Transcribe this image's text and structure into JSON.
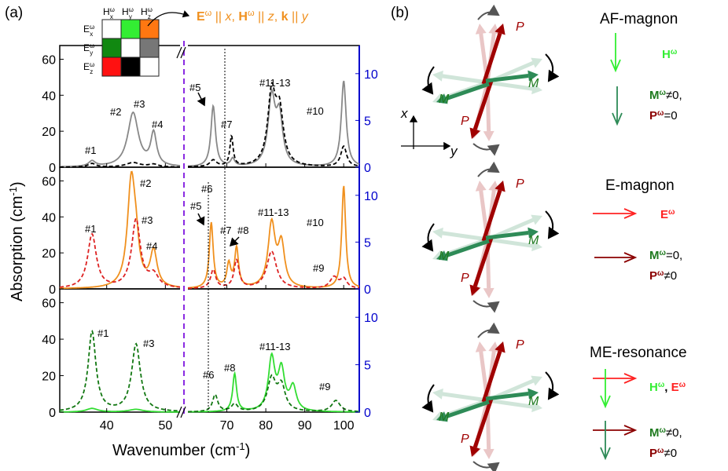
{
  "panel_labels": {
    "a": "(a)",
    "b": "(b)"
  },
  "matrix": {
    "col_headers": [
      "H",
      "H",
      "H"
    ],
    "col_subs": [
      "x",
      "y",
      "z"
    ],
    "row_headers": [
      "E",
      "E",
      "E"
    ],
    "row_subs": [
      "x",
      "y",
      "z"
    ],
    "sup": "ω",
    "cells": [
      [
        "#ffffff",
        "#33ee33",
        "#ff7711"
      ],
      [
        "#118811",
        "#ffffff",
        "#777777"
      ],
      [
        "#ff1111",
        "#000000",
        "#ffffff"
      ]
    ],
    "annotation": {
      "E": "E",
      "H": "H",
      "k": "k",
      "sup": "ω",
      "x": "x",
      "z": "z",
      "y": "y",
      "par1": "||",
      "par2": "||",
      "par3": "||",
      "comma1": ",",
      "comma2": ","
    }
  },
  "axes": {
    "ylabel": "Absorption (cm",
    "ylabel_sup": "-1",
    "ylabel_close": ")",
    "xlabel": "Wavenumber (cm",
    "xlabel_sup": "-1",
    "xlabel_close": ")",
    "x_ticks": [
      "40",
      "50",
      "70",
      "80",
      "90",
      "100"
    ],
    "panels": [
      {
        "left_ticks": [
          "0",
          "20",
          "40",
          "60"
        ],
        "right_ticks": [
          "0",
          "5",
          "10"
        ]
      },
      {
        "left_ticks": [
          "0",
          "20",
          "40",
          "60"
        ],
        "right_ticks": [
          "0",
          "5",
          "10"
        ]
      },
      {
        "left_ticks": [
          "0",
          "20",
          "40",
          "60"
        ],
        "right_ticks": [
          "0",
          "5",
          "10"
        ]
      }
    ]
  },
  "peak_labels": [
    [
      "#1",
      "#2",
      "#3",
      "#4",
      "#5",
      "#7",
      "#11-13",
      "#10"
    ],
    [
      "#1",
      "#2",
      "#3",
      "#4",
      "#5",
      "#6",
      "#7",
      "#8",
      "#11-13",
      "#10",
      "#9"
    ],
    [
      "#1",
      "#3",
      "#6",
      "#8",
      "#11-13",
      "#9"
    ]
  ],
  "chart_data": [
    {
      "type": "line",
      "xlabel": "Wavenumber (cm-1)",
      "ylabel": "Absorption (cm-1)",
      "left_ylim": [
        0,
        65
      ],
      "right_ylim": [
        0,
        12.5
      ],
      "left_xlim": [
        32,
        52.5
      ],
      "right_xlim": [
        60,
        104
      ],
      "series": [
        {
          "color": "#888888",
          "dash": "solid",
          "peaks_left": [
            [
              37.5,
              3,
              0.7
            ],
            [
              44.5,
              30,
              1.1
            ],
            [
              48,
              18,
              0.6
            ]
          ],
          "peaks_right": [
            [
              66.5,
              6.5,
              0.7
            ],
            [
              71.5,
              0.8,
              0.6
            ],
            [
              81.5,
              7.2,
              1.1
            ],
            [
              83.5,
              5,
              1.0
            ],
            [
              100,
              9.2,
              0.75
            ]
          ]
        },
        {
          "color": "#000000",
          "dash": "dashed",
          "peaks_left": [
            [
              37.5,
              2,
              0.8
            ],
            [
              44.5,
              2.5,
              1.5
            ],
            [
              48,
              1.5,
              1.0
            ]
          ],
          "peaks_right": [
            [
              66.5,
              0.7,
              1.0
            ],
            [
              71.2,
              3.2,
              0.5
            ],
            [
              81.5,
              7.5,
              1.2
            ],
            [
              83.5,
              5.5,
              1.2
            ],
            [
              100,
              2.2,
              0.9
            ]
          ]
        }
      ]
    },
    {
      "type": "line",
      "xlabel": "Wavenumber (cm-1)",
      "ylabel": "Absorption (cm-1)",
      "left_ylim": [
        0,
        65
      ],
      "right_ylim": [
        0,
        12.5
      ],
      "left_xlim": [
        32,
        52.5
      ],
      "right_xlim": [
        60,
        104
      ],
      "series": [
        {
          "color": "#f0901e",
          "dash": "solid",
          "peaks_left": [
            [
              44.2,
              59,
              0.8
            ],
            [
              45,
              15,
              0.6
            ],
            [
              48,
              20,
              0.7
            ]
          ],
          "peaks_right": [
            [
              66,
              7,
              0.6
            ],
            [
              70.5,
              2.5,
              0.6
            ],
            [
              72.5,
              4.2,
              0.6
            ],
            [
              81.5,
              6.8,
              1.1
            ],
            [
              84,
              4.5,
              1.0
            ],
            [
              100,
              11,
              0.6
            ]
          ]
        },
        {
          "color": "#dd2222",
          "dash": "dashed",
          "peaks_left": [
            [
              37.5,
              30,
              0.9
            ],
            [
              45,
              38,
              0.9
            ],
            [
              48,
              7,
              1.0
            ]
          ],
          "peaks_right": [
            [
              66.5,
              2,
              0.8
            ],
            [
              72.5,
              3,
              0.8
            ],
            [
              81.5,
              4,
              1.5
            ],
            [
              97.5,
              1.2,
              1.2
            ],
            [
              100,
              1.0,
              1.0
            ]
          ]
        }
      ]
    },
    {
      "type": "line",
      "xlabel": "Wavenumber (cm-1)",
      "ylabel": "Absorption (cm-1)",
      "left_ylim": [
        0,
        65
      ],
      "right_ylim": [
        0,
        12.5
      ],
      "left_xlim": [
        32,
        52.5
      ],
      "right_xlim": [
        60,
        104
      ],
      "series": [
        {
          "color": "#33dd33",
          "dash": "solid",
          "peaks_left": [
            [
              37.5,
              2,
              1.2
            ],
            [
              45,
              1.5,
              1.5
            ]
          ],
          "peaks_right": [
            [
              72,
              4,
              0.6
            ],
            [
              81.5,
              5.5,
              1.0
            ],
            [
              84,
              4.2,
              1.0
            ],
            [
              87,
              2.5,
              1.0
            ]
          ]
        },
        {
          "color": "#117711",
          "dash": "dashed",
          "peaks_left": [
            [
              37.5,
              44,
              0.8
            ],
            [
              45,
              37,
              0.9
            ]
          ],
          "peaks_right": [
            [
              67,
              1.8,
              0.8
            ],
            [
              72,
              0.8,
              1.0
            ],
            [
              81.5,
              3.4,
              1.3
            ],
            [
              84,
              2.6,
              1.2
            ],
            [
              98,
              1.2,
              1.3
            ]
          ]
        }
      ]
    }
  ],
  "modes": [
    {
      "title": "AF-magnon",
      "field_label": "H",
      "field_sup": "ω",
      "field_color": "#33ee33",
      "resp1": "M",
      "resp1_sup": "ω",
      "resp1_val": "≠0,",
      "resp2": "P",
      "resp2_sup": "ω",
      "resp2_val": "=0"
    },
    {
      "title": "E-magnon",
      "field_label": "E",
      "field_sup": "ω",
      "field_color": "#ff2222",
      "resp1": "M",
      "resp1_sup": "ω",
      "resp1_val": "=0,",
      "resp2": "P",
      "resp2_sup": "ω",
      "resp2_val": "≠0"
    },
    {
      "title": "ME-resonance",
      "field_label": "H",
      "field_sup": "ω",
      "field_label2": "E",
      "field_sep": ", ",
      "field_color": "#33ee33",
      "field_color2": "#ff2222",
      "resp1": "M",
      "resp1_sup": "ω",
      "resp1_val": "≠0,",
      "resp2": "P",
      "resp2_sup": "ω",
      "resp2_val": "≠0"
    }
  ],
  "spin_labels": {
    "P": "P",
    "M": "M",
    "x": "x",
    "y": "y"
  },
  "colors": {
    "P": "#a00000",
    "M": "#2e8b57",
    "M_text": "#1e7a1e",
    "resp_M": "#1e7a1e",
    "resp_P": "#8b0000",
    "right_axis": "#0000cc",
    "break_line": "#8a2be2"
  }
}
